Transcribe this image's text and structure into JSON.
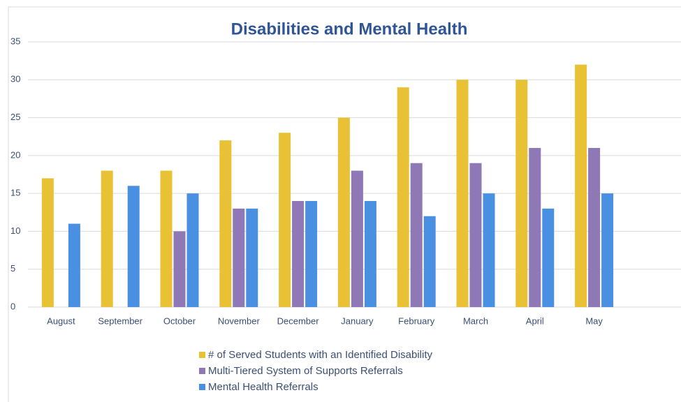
{
  "chart_data": {
    "type": "bar",
    "title": "Disabilities and Mental Health",
    "categories": [
      "August",
      "September",
      "October",
      "November",
      "December",
      "January",
      "February",
      "March",
      "April",
      "May"
    ],
    "series": [
      {
        "name": "# of Served Students with an Identified Disability",
        "color": "#e8c234",
        "values": [
          17,
          18,
          18,
          22,
          23,
          25,
          29,
          30,
          30,
          32
        ]
      },
      {
        "name": "Multi-Tiered System of Supports Referrals",
        "color": "#8e78b5",
        "values": [
          null,
          null,
          10,
          13,
          14,
          18,
          19,
          19,
          21,
          21
        ]
      },
      {
        "name": "Mental Health Referrals",
        "color": "#4a90e2",
        "values": [
          11,
          16,
          15,
          13,
          14,
          14,
          12,
          15,
          13,
          15
        ]
      }
    ],
    "ylim": [
      0,
      35
    ],
    "yticks": [
      0,
      5,
      10,
      15,
      20,
      25,
      30,
      35
    ],
    "grid": true,
    "legend": "bottom"
  }
}
